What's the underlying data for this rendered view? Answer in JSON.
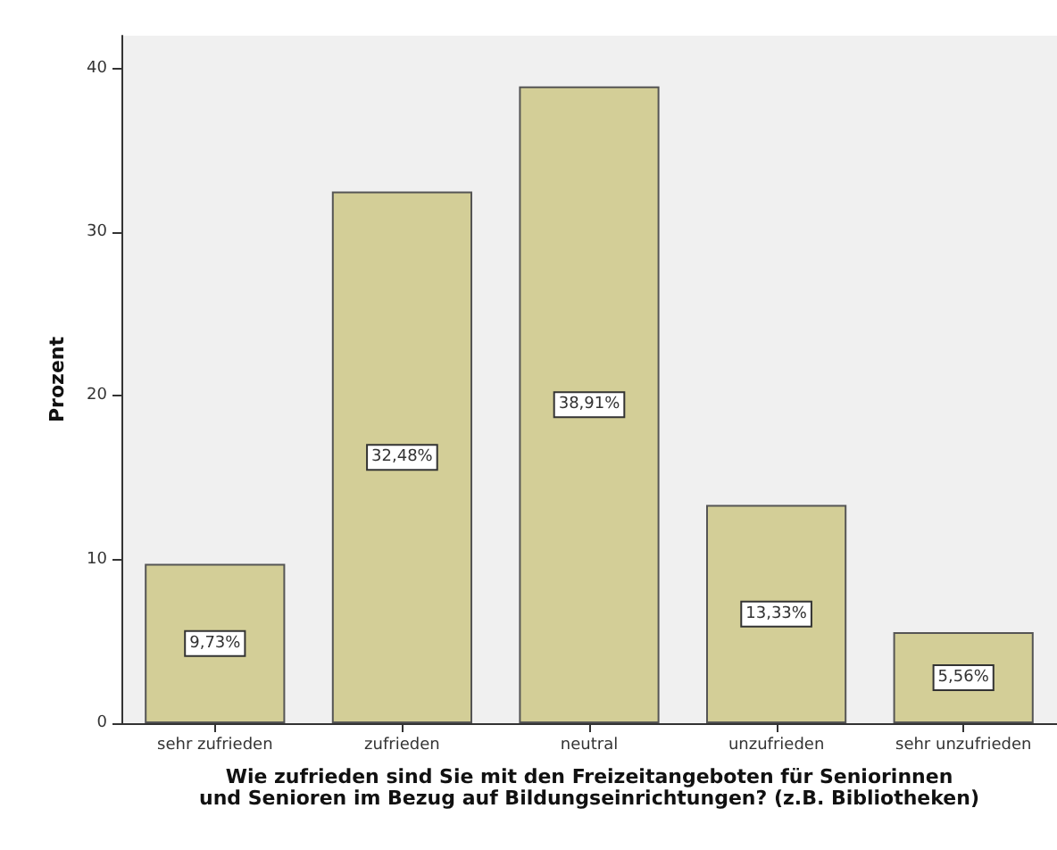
{
  "chart_data": {
    "type": "bar",
    "ylabel": "Prozent",
    "xlabel": "Wie zufrieden sind Sie mit den Freizeitangeboten für Seniorinnen\nund Senioren im Bezug auf Bildungseinrichtungen? (z.B. Bibliotheken)",
    "categories": [
      "sehr zufrieden",
      "zufrieden",
      "neutral",
      "unzufrieden",
      "sehr unzufrieden"
    ],
    "values": [
      9.73,
      32.48,
      38.91,
      13.33,
      5.56
    ],
    "value_labels": [
      "9,73%",
      "32,48%",
      "38,91%",
      "13,33%",
      "5,56%"
    ],
    "color": "#d3ce97",
    "ylim": [
      0,
      42
    ],
    "yticks": [
      0,
      10,
      20,
      30,
      40
    ],
    "grid": false
  }
}
